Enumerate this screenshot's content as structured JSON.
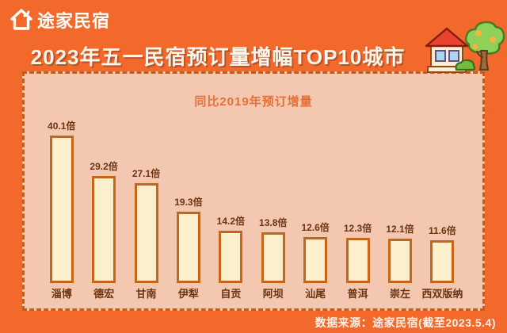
{
  "brand": {
    "name": "途家民宿"
  },
  "header": {
    "title": "2023年五一民宿预订量增幅TOP10城市"
  },
  "chart_data": {
    "type": "bar",
    "title": "同比2019年预订增量",
    "unit": "倍",
    "categories": [
      "淄博",
      "德宏",
      "甘南",
      "伊犁",
      "自贡",
      "阿坝",
      "汕尾",
      "普洱",
      "崇左",
      "西双版纳"
    ],
    "values": [
      40.1,
      29.2,
      27.1,
      19.3,
      14.2,
      13.8,
      12.6,
      12.3,
      12.1,
      11.6
    ],
    "value_labels": [
      "40.1倍",
      "29.2倍",
      "27.1倍",
      "19.3倍",
      "14.2倍",
      "13.8倍",
      "12.6倍",
      "12.3倍",
      "12.1倍",
      "11.6倍"
    ],
    "xlabel": "",
    "ylabel": "",
    "ylim": [
      0,
      40.1
    ],
    "grid": false,
    "legend": false,
    "bar_fill": "#FCF0CC",
    "bar_border": "#C8651C"
  },
  "footer": {
    "source": "数据来源：途家民宿(截至2023.5.4)"
  },
  "illustration": {
    "name": "house-and-tree"
  },
  "colors": {
    "background": "#F2692B",
    "panel": "#F4C7B0",
    "panel_border": "#C05F1D",
    "title_text": "#FAF5EC",
    "subtitle_text": "#E4703A",
    "label_text": "#6B3312",
    "source_text": "#FDF3EA"
  }
}
